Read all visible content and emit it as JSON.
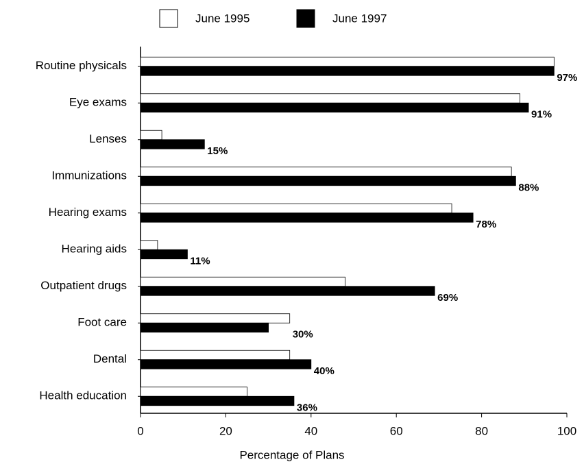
{
  "chart_data": {
    "type": "bar",
    "orientation": "horizontal",
    "categories": [
      "Routine physicals",
      "Eye exams",
      "Lenses",
      "Immunizations",
      "Hearing exams",
      "Hearing aids",
      "Outpatient drugs",
      "Foot care",
      "Dental",
      "Health education"
    ],
    "series": [
      {
        "name": "June 1995",
        "color": "#ffffff",
        "values": [
          97,
          89,
          5,
          87,
          73,
          4,
          48,
          35,
          35,
          25
        ]
      },
      {
        "name": "June 1997",
        "color": "#000000",
        "values": [
          97,
          91,
          15,
          88,
          78,
          11,
          69,
          30,
          40,
          36
        ],
        "value_labels": [
          "97%",
          "91%",
          "15%",
          "88%",
          "78%",
          "11%",
          "69%",
          "30%",
          "40%",
          "36%"
        ]
      }
    ],
    "xlabel": "Percentage of Plans",
    "xlim": [
      0,
      100
    ],
    "xticks": [
      0,
      20,
      40,
      60,
      80,
      100
    ],
    "legend": "top"
  }
}
